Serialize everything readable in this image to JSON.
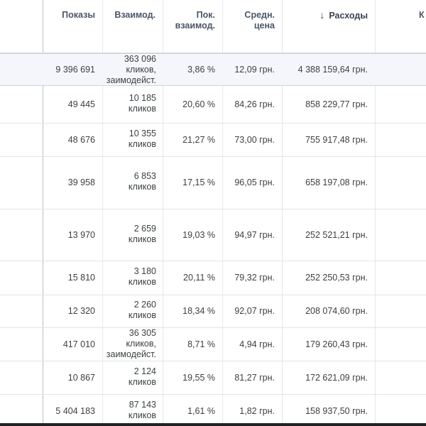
{
  "header": {
    "columns": [
      {
        "key": "impressions",
        "label": "Показы"
      },
      {
        "key": "interactions",
        "label": "Взаимод."
      },
      {
        "key": "rate",
        "label": "Пок.\nвзаимод."
      },
      {
        "key": "avg_cost",
        "label": "Средн.\nцена"
      },
      {
        "key": "cost",
        "label": "Расходы",
        "sort": "desc"
      },
      {
        "key": "next",
        "label": "К"
      }
    ]
  },
  "rows": [
    {
      "total": true,
      "impressions": "9 396 691",
      "interactions": [
        "363 096",
        "кликов,",
        "заимодейст."
      ],
      "rate": "3,86 %",
      "avg_cost": "12,09 грн.",
      "cost": "4 388 159,64 грн."
    },
    {
      "impressions": "49 445",
      "interactions": [
        "10 185",
        "кликов"
      ],
      "rate": "20,60 %",
      "avg_cost": "84,26 грн.",
      "cost": "858 229,77 грн."
    },
    {
      "impressions": "48 676",
      "interactions": [
        "10 355",
        "кликов"
      ],
      "rate": "21,27 %",
      "avg_cost": "73,00 грн.",
      "cost": "755 917,48 грн."
    },
    {
      "impressions": "39 958",
      "interactions": [
        "6 853",
        "кликов"
      ],
      "rate": "17,15 %",
      "avg_cost": "96,05 грн.",
      "cost": "658 197,08 грн."
    },
    {
      "impressions": "13 970",
      "interactions": [
        "2 659",
        "кликов"
      ],
      "rate": "19,03 %",
      "avg_cost": "94,97 грн.",
      "cost": "252 521,21 грн."
    },
    {
      "impressions": "15 810",
      "interactions": [
        "3 180",
        "кликов"
      ],
      "rate": "20,11 %",
      "avg_cost": "79,32 грн.",
      "cost": "252 250,53 грн."
    },
    {
      "impressions": "12 320",
      "interactions": [
        "2 260",
        "кликов"
      ],
      "rate": "18,34 %",
      "avg_cost": "92,07 грн.",
      "cost": "208 074,60 грн."
    },
    {
      "impressions": "417 010",
      "interactions": [
        "36 305",
        "кликов,",
        "заимодейст."
      ],
      "rate": "8,71 %",
      "avg_cost": "4,94 грн.",
      "cost": "179 260,43 грн."
    },
    {
      "impressions": "10 867",
      "interactions": [
        "2 124",
        "кликов"
      ],
      "rate": "19,55 %",
      "avg_cost": "81,27 грн.",
      "cost": "172 621,09 грн."
    },
    {
      "impressions": "5 404 183",
      "interactions": [
        "87 143",
        "кликов"
      ],
      "rate": "1,61 %",
      "avg_cost": "1,82 грн.",
      "cost": "158 937,50 грн."
    }
  ],
  "colors": {
    "header_text": "#4a5568",
    "cell_text": "#3c4043",
    "total_row_bg": "#f4f6fb",
    "grid_line": "#e4e6ea"
  },
  "icons": {
    "sort": "arrow-down-icon"
  }
}
